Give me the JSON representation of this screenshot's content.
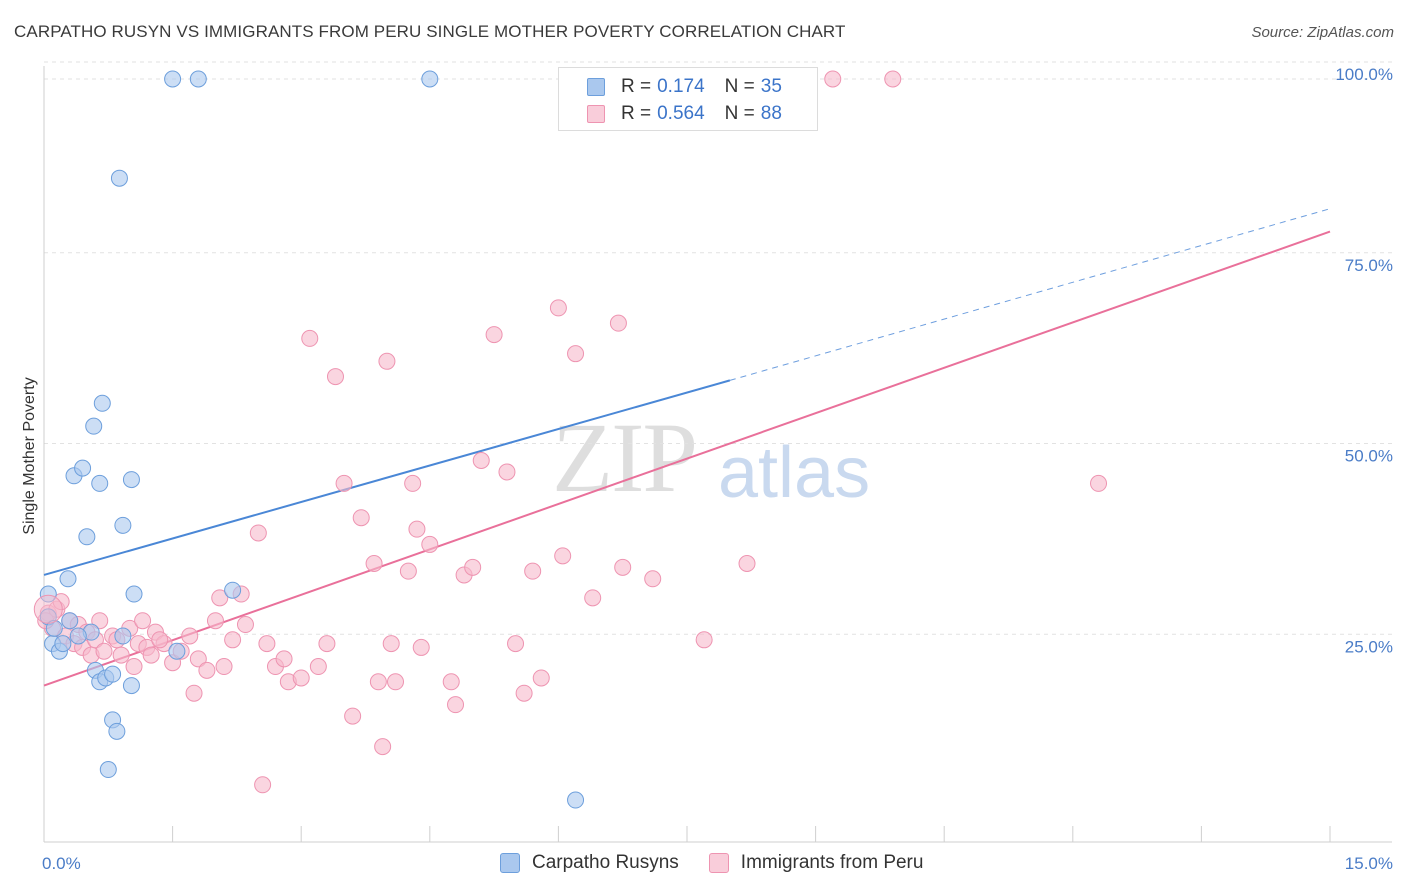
{
  "header": {
    "title": "CARPATHO RUSYN VS IMMIGRANTS FROM PERU SINGLE MOTHER POVERTY CORRELATION CHART",
    "source": "Source: ZipAtlas.com"
  },
  "watermark": {
    "zip": "ZIP",
    "atlas": "atlas"
  },
  "legend": {
    "rows": [
      {
        "r_label": "R =",
        "r_value": "0.174",
        "n_label": "N =",
        "n_value": "35",
        "color": "#aac8ee"
      },
      {
        "r_label": "R =",
        "r_value": "0.564",
        "n_label": "N =",
        "n_value": "88",
        "color": "#f6b9cc"
      }
    ]
  },
  "bottom_legend": {
    "items": [
      {
        "label": "Carpatho Rusyns",
        "color": "#aac8ee"
      },
      {
        "label": "Immigrants from Peru",
        "color": "#f6b9cc"
      }
    ]
  },
  "chart_data": {
    "type": "scatter",
    "title": "CARPATHO RUSYN VS IMMIGRANTS FROM PERU SINGLE MOTHER POVERTY CORRELATION CHART",
    "xlabel": "",
    "ylabel": "Single Mother Poverty",
    "xlim": [
      0,
      15
    ],
    "ylim": [
      0,
      102
    ],
    "x_tick_labels": [
      "0.0%",
      "15.0%"
    ],
    "y_tick_values": [
      25,
      50,
      75,
      100
    ],
    "y_tick_labels": [
      "25.0%",
      "50.0%",
      "75.0%",
      "100.0%"
    ],
    "grid": true,
    "legend_position": "top-center",
    "series": [
      {
        "name": "Carpatho Rusyns",
        "color": "#4a87d6",
        "fill": "#aac8ee",
        "points": [
          [
            0.05,
            32.5
          ],
          [
            0.05,
            29.5
          ],
          [
            0.1,
            26.0
          ],
          [
            0.12,
            28.0
          ],
          [
            0.18,
            25.0
          ],
          [
            0.22,
            26.0
          ],
          [
            0.28,
            34.5
          ],
          [
            0.35,
            48.0
          ],
          [
            0.45,
            49.0
          ],
          [
            0.5,
            40.0
          ],
          [
            0.55,
            27.5
          ],
          [
            0.58,
            54.5
          ],
          [
            0.6,
            22.5
          ],
          [
            0.65,
            47.0
          ],
          [
            0.65,
            21.0
          ],
          [
            0.68,
            57.5
          ],
          [
            0.72,
            21.5
          ],
          [
            0.75,
            9.5
          ],
          [
            0.8,
            16.0
          ],
          [
            0.8,
            22.0
          ],
          [
            0.85,
            14.5
          ],
          [
            0.88,
            87.0
          ],
          [
            0.92,
            27.0
          ],
          [
            0.92,
            41.5
          ],
          [
            1.02,
            47.5
          ],
          [
            1.02,
            20.5
          ],
          [
            1.05,
            32.5
          ],
          [
            1.5,
            100.0
          ],
          [
            1.55,
            25.0
          ],
          [
            1.8,
            100.0
          ],
          [
            2.2,
            33.0
          ],
          [
            4.5,
            100.0
          ],
          [
            6.2,
            5.5
          ],
          [
            0.4,
            27.0
          ],
          [
            0.3,
            29.0
          ]
        ],
        "trend": {
          "x": [
            0,
            8.0
          ],
          "y": [
            35.0,
            60.5
          ],
          "extended": {
            "x": [
              8.0,
              15.0
            ],
            "y": [
              60.5,
              83.0
            ]
          }
        }
      },
      {
        "name": "Immigrants from Peru",
        "color": "#e9709a",
        "fill": "#f6b9cc",
        "points": [
          [
            0.05,
            30.0
          ],
          [
            0.1,
            28.0
          ],
          [
            0.15,
            30.5
          ],
          [
            0.25,
            27.0
          ],
          [
            0.3,
            29.0
          ],
          [
            0.35,
            26.0
          ],
          [
            0.4,
            28.5
          ],
          [
            0.45,
            25.5
          ],
          [
            0.5,
            27.5
          ],
          [
            0.55,
            24.5
          ],
          [
            0.6,
            26.5
          ],
          [
            0.65,
            29.0
          ],
          [
            0.7,
            25.0
          ],
          [
            0.8,
            27.0
          ],
          [
            0.85,
            26.5
          ],
          [
            0.9,
            24.5
          ],
          [
            1.0,
            28.0
          ],
          [
            1.05,
            23.0
          ],
          [
            1.1,
            26.0
          ],
          [
            1.2,
            25.5
          ],
          [
            1.25,
            24.5
          ],
          [
            1.3,
            27.5
          ],
          [
            1.4,
            26.0
          ],
          [
            1.5,
            23.5
          ],
          [
            1.6,
            25.0
          ],
          [
            1.7,
            27.0
          ],
          [
            1.75,
            19.5
          ],
          [
            1.8,
            24.0
          ],
          [
            1.9,
            22.5
          ],
          [
            2.0,
            29.0
          ],
          [
            2.1,
            23.0
          ],
          [
            2.2,
            26.5
          ],
          [
            2.3,
            32.5
          ],
          [
            2.35,
            28.5
          ],
          [
            2.5,
            40.5
          ],
          [
            2.55,
            7.5
          ],
          [
            2.6,
            26.0
          ],
          [
            2.7,
            23.0
          ],
          [
            2.8,
            24.0
          ],
          [
            2.85,
            21.0
          ],
          [
            3.0,
            21.5
          ],
          [
            3.1,
            66.0
          ],
          [
            3.2,
            23.0
          ],
          [
            3.3,
            26.0
          ],
          [
            3.4,
            61.0
          ],
          [
            3.5,
            47.0
          ],
          [
            3.6,
            16.5
          ],
          [
            3.7,
            42.5
          ],
          [
            3.85,
            36.5
          ],
          [
            3.9,
            21.0
          ],
          [
            3.95,
            12.5
          ],
          [
            4.0,
            63.0
          ],
          [
            4.05,
            26.0
          ],
          [
            4.1,
            21.0
          ],
          [
            4.25,
            35.5
          ],
          [
            4.3,
            47.0
          ],
          [
            4.35,
            41.0
          ],
          [
            4.4,
            25.5
          ],
          [
            4.5,
            39.0
          ],
          [
            4.75,
            21.0
          ],
          [
            4.8,
            18.0
          ],
          [
            4.9,
            35.0
          ],
          [
            5.0,
            36.0
          ],
          [
            5.1,
            50.0
          ],
          [
            5.25,
            66.5
          ],
          [
            5.4,
            48.5
          ],
          [
            5.5,
            26.0
          ],
          [
            5.6,
            19.5
          ],
          [
            5.7,
            35.5
          ],
          [
            5.8,
            21.5
          ],
          [
            6.0,
            70.0
          ],
          [
            6.05,
            37.5
          ],
          [
            6.2,
            64.0
          ],
          [
            6.4,
            32.0
          ],
          [
            6.5,
            100.0
          ],
          [
            6.7,
            68.0
          ],
          [
            6.75,
            36.0
          ],
          [
            7.1,
            34.5
          ],
          [
            7.7,
            26.5
          ],
          [
            8.2,
            36.5
          ],
          [
            9.2,
            100.0
          ],
          [
            9.9,
            100.0
          ],
          [
            12.3,
            47.0
          ],
          [
            0.2,
            31.5
          ],
          [
            0.02,
            29.0
          ],
          [
            1.15,
            29.0
          ],
          [
            1.35,
            26.5
          ],
          [
            2.05,
            32.0
          ]
        ],
        "trend": {
          "x": [
            0,
            15.0
          ],
          "y": [
            20.5,
            80.0
          ]
        }
      }
    ]
  }
}
